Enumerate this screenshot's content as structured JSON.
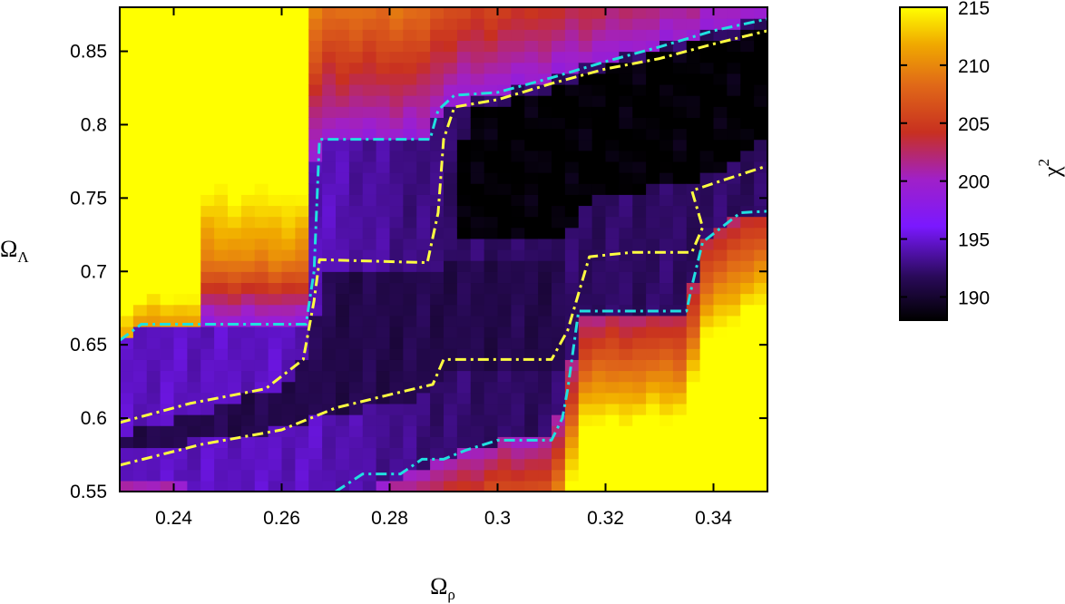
{
  "chart_data": {
    "type": "heatmap",
    "title": "",
    "xlabel": "Ω",
    "xlabel_sub": "ρ",
    "ylabel": "Ω",
    "ylabel_sub": "Λ",
    "colorbar_label": "χ",
    "colorbar_label_sup": "2",
    "xlim": [
      0.23,
      0.35
    ],
    "ylim": [
      0.55,
      0.88
    ],
    "xticks": [
      0.24,
      0.26,
      0.28,
      0.3,
      0.32,
      0.34
    ],
    "xtick_labels": [
      "0.24",
      "0.26",
      "0.28",
      "0.3",
      "0.32",
      "0.34"
    ],
    "yticks": [
      0.55,
      0.6,
      0.65,
      0.7,
      0.75,
      0.8,
      0.85
    ],
    "ytick_labels": [
      "0.55",
      "0.6",
      "0.65",
      "0.7",
      "0.75",
      "0.8",
      "0.85"
    ],
    "colorbar_range": [
      188,
      215
    ],
    "colorbar_ticks": [
      190,
      195,
      200,
      205,
      210,
      215
    ],
    "colorbar_tick_labels": [
      "190",
      "195",
      "200",
      "205",
      "210",
      "215"
    ],
    "colormap": [
      "#000000",
      "#2a0a5a",
      "#7a18ff",
      "#a020c8",
      "#c83020",
      "#e06818",
      "#f0a800",
      "#ffff00"
    ],
    "grid": false,
    "contours": [
      {
        "color": "#ffff40",
        "style": "dash-dot",
        "segments": [
          [
            [
              0.23,
              0.568
            ],
            [
              0.245,
              0.582
            ],
            [
              0.26,
              0.592
            ],
            [
              0.27,
              0.607
            ],
            [
              0.28,
              0.616
            ],
            [
              0.288,
              0.623
            ],
            [
              0.29,
              0.64
            ],
            [
              0.31,
              0.64
            ],
            [
              0.313,
              0.66
            ],
            [
              0.317,
              0.71
            ],
            [
              0.325,
              0.713
            ],
            [
              0.336,
              0.713
            ],
            [
              0.338,
              0.73
            ],
            [
              0.336,
              0.755
            ],
            [
              0.34,
              0.76
            ],
            [
              0.35,
              0.772
            ]
          ],
          [
            [
              0.23,
              0.597
            ],
            [
              0.243,
              0.61
            ],
            [
              0.257,
              0.62
            ],
            [
              0.264,
              0.64
            ],
            [
              0.266,
              0.68
            ],
            [
              0.267,
              0.708
            ],
            [
              0.287,
              0.706
            ],
            [
              0.289,
              0.74
            ],
            [
              0.29,
              0.79
            ],
            [
              0.292,
              0.812
            ],
            [
              0.3,
              0.817
            ],
            [
              0.31,
              0.828
            ],
            [
              0.32,
              0.838
            ],
            [
              0.33,
              0.845
            ],
            [
              0.34,
              0.855
            ],
            [
              0.35,
              0.864
            ]
          ]
        ]
      },
      {
        "color": "#20e0e0",
        "style": "dash-dot",
        "segments": [
          [
            [
              0.23,
              0.653
            ],
            [
              0.234,
              0.664
            ],
            [
              0.2645,
              0.664
            ],
            [
              0.266,
              0.7
            ],
            [
              0.267,
              0.79
            ],
            [
              0.2875,
              0.79
            ],
            [
              0.289,
              0.81
            ],
            [
              0.292,
              0.82
            ],
            [
              0.3,
              0.822
            ],
            [
              0.31,
              0.832
            ],
            [
              0.32,
              0.843
            ],
            [
              0.33,
              0.853
            ],
            [
              0.34,
              0.864
            ],
            [
              0.35,
              0.872
            ]
          ],
          [
            [
              0.27,
              0.55
            ],
            [
              0.275,
              0.562
            ],
            [
              0.282,
              0.562
            ],
            [
              0.286,
              0.572
            ],
            [
              0.29,
              0.572
            ],
            [
              0.294,
              0.578
            ],
            [
              0.3,
              0.585
            ],
            [
              0.31,
              0.585
            ],
            [
              0.312,
              0.6
            ],
            [
              0.313,
              0.62
            ],
            [
              0.315,
              0.673
            ],
            [
              0.335,
              0.673
            ],
            [
              0.336,
              0.69
            ],
            [
              0.338,
              0.72
            ],
            [
              0.345,
              0.74
            ],
            [
              0.35,
              0.741
            ]
          ]
        ]
      }
    ]
  }
}
